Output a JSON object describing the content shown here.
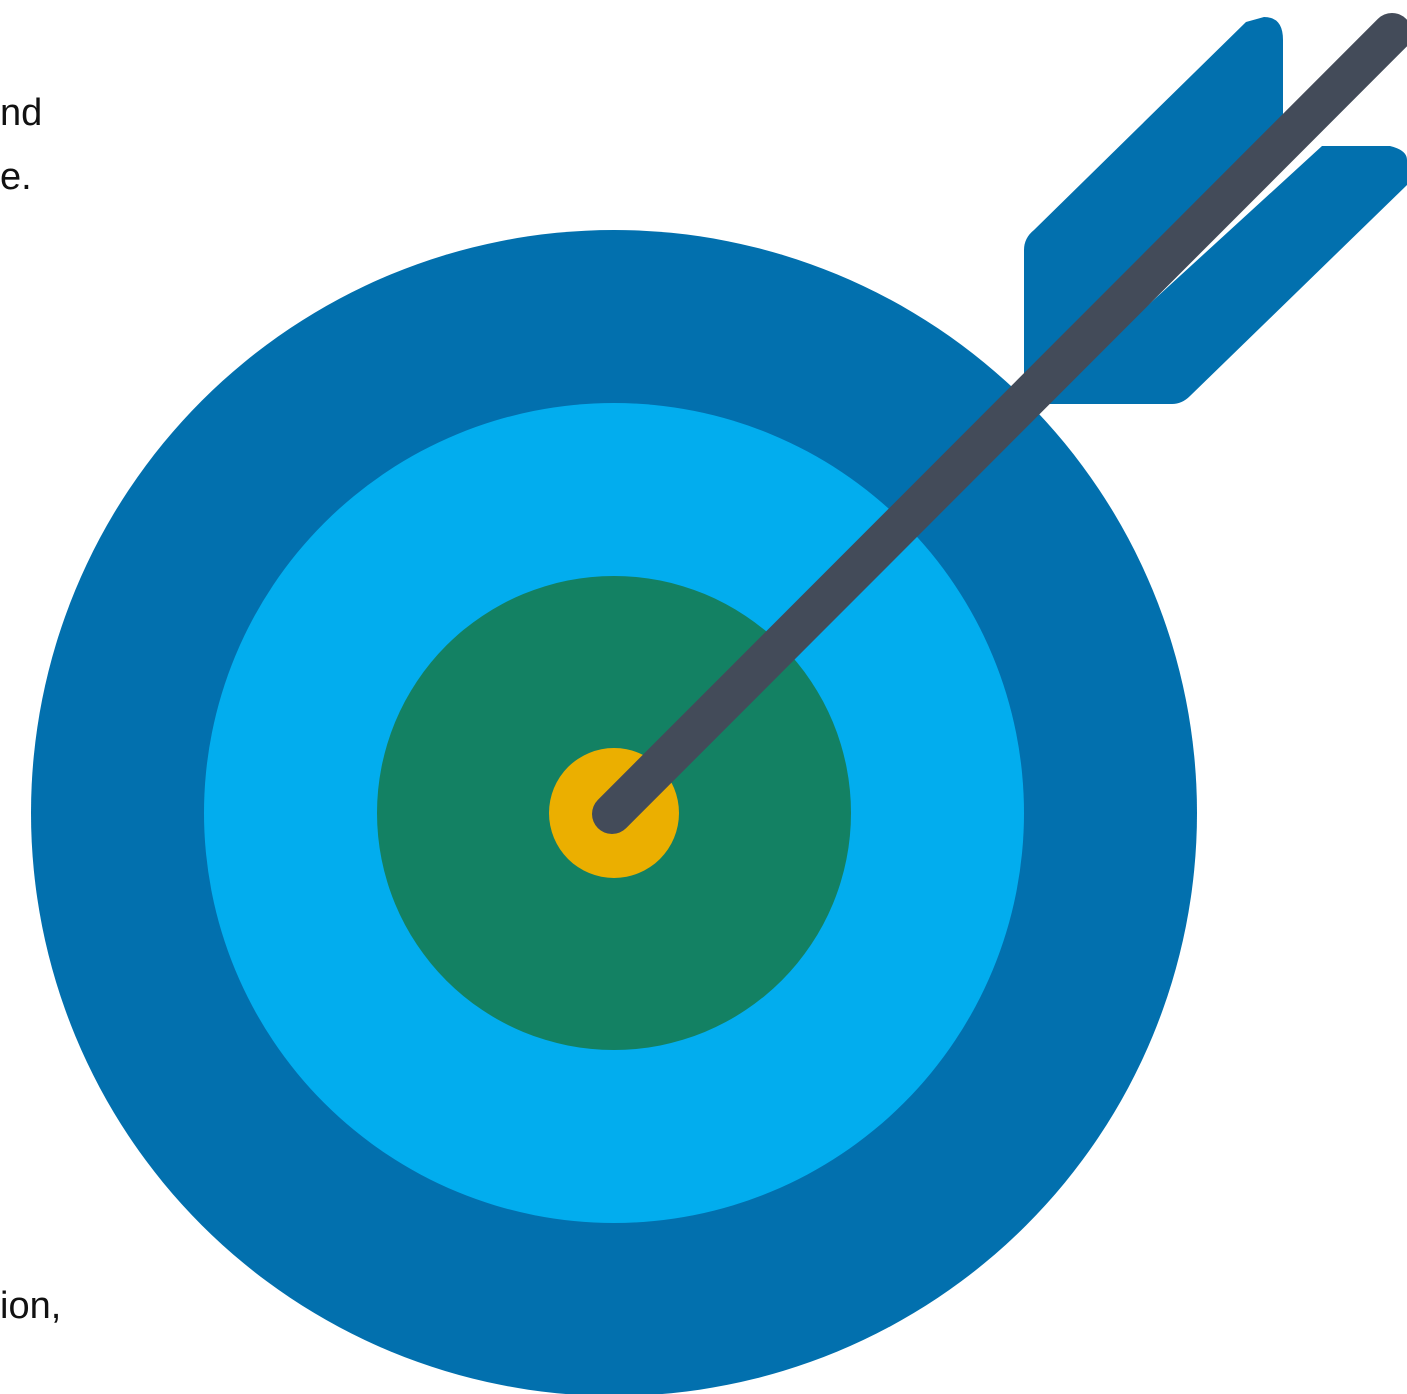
{
  "text_fragments": [
    "nd",
    "e.",
    "ion,"
  ],
  "colors": {
    "outer_ring": "#0270ae",
    "middle_ring": "#02adee",
    "inner_ring": "#138163",
    "bullseye": "#ebaf00",
    "arrow_shaft": "#434b59",
    "arrow_fletching": "#0270ae"
  },
  "icon": "target-with-arrow-icon"
}
